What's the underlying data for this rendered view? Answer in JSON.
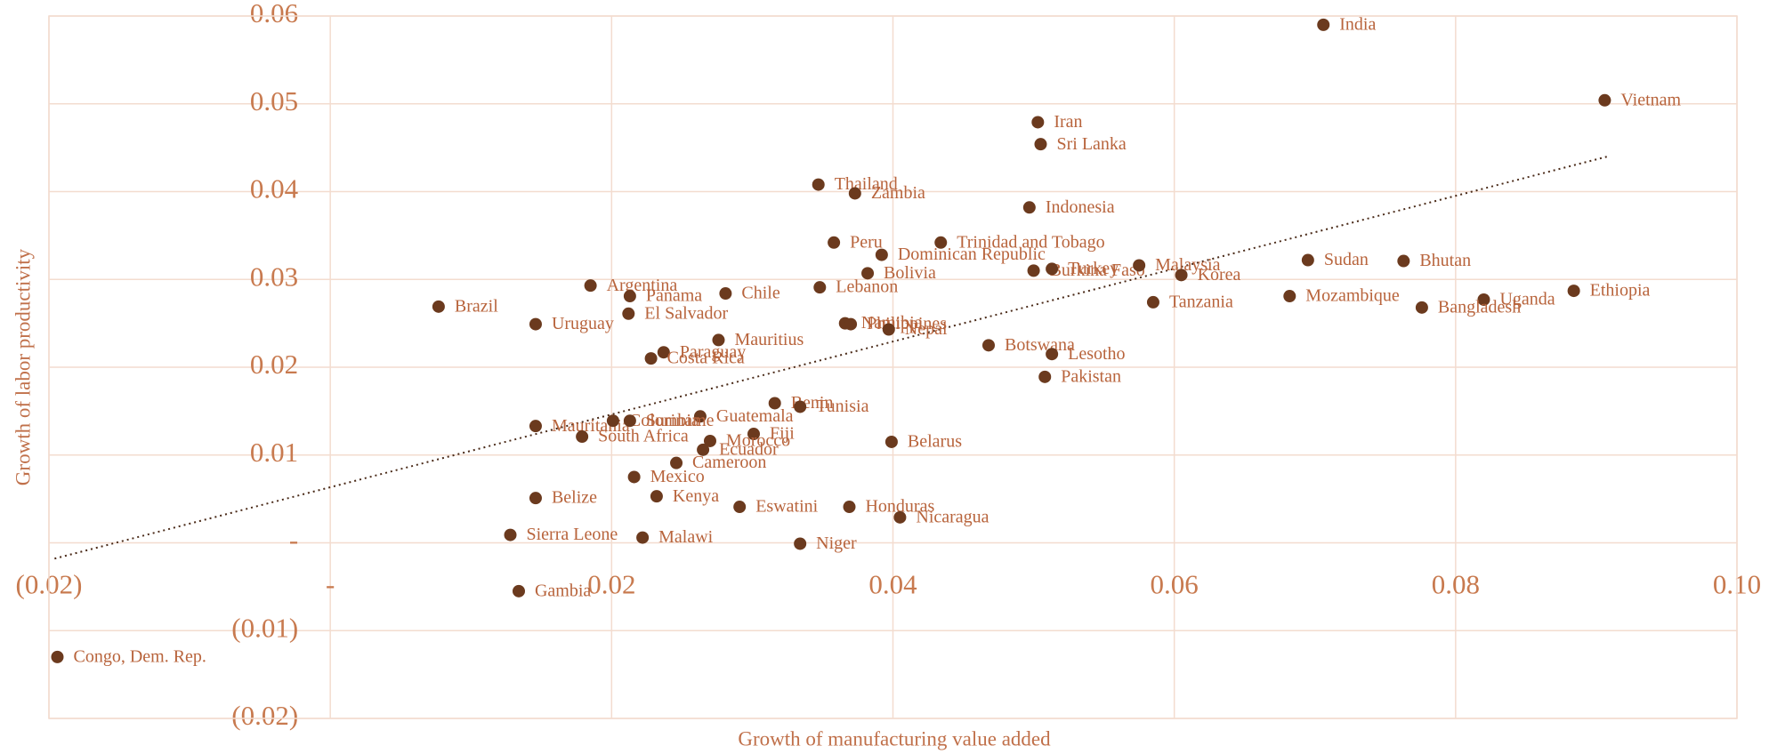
{
  "chart_data": {
    "type": "scatter",
    "x_label": "Growth of manufacturing value added",
    "y_label": "Growth of labor productivity",
    "labels": [
      "India",
      "Vietnam",
      "Iran",
      "Sri Lanka",
      "Thailand",
      "Zambia",
      "Indonesia",
      "Peru",
      "Trinidad and Tobago",
      "Dominican Republic",
      "Bolivia",
      "Burkina Faso",
      "Turkey",
      "Malaysia",
      "Korea",
      "Sudan",
      "Bhutan",
      "Ethiopia",
      "Uganda",
      "Bangladesh",
      "Mozambique",
      "Tanzania",
      "Argentina",
      "Chile",
      "Lebanon",
      "Panama",
      "El Salvador",
      "Brazil",
      "Uruguay",
      "Namibia",
      "Philippines",
      "Nepal",
      "Mauritius",
      "Botswana",
      "Lesotho",
      "Paraguay",
      "Costa Rica",
      "Pakistan",
      "Benin",
      "Tunisia",
      "Guatemala",
      "Mauritania",
      "Colombia",
      "Suriname",
      "Fiji",
      "Morocco",
      "Ecuador",
      "South Africa",
      "Belarus",
      "Cameroon",
      "Mexico",
      "Belize",
      "Kenya",
      "Eswatini",
      "Honduras",
      "Nicaragua",
      "Sierra Leone",
      "Malawi",
      "Niger",
      "Gambia",
      "Congo, Dem. Rep."
    ],
    "x": [
      0.0706,
      0.0906,
      0.0503,
      0.0505,
      0.0347,
      0.0373,
      0.0497,
      0.0358,
      0.0434,
      0.0392,
      0.0382,
      0.05,
      0.0513,
      0.0575,
      0.0605,
      0.0695,
      0.0763,
      0.0884,
      0.082,
      0.0776,
      0.0682,
      0.0585,
      0.0185,
      0.0281,
      0.0348,
      0.0213,
      0.0212,
      0.0077,
      0.0146,
      0.0366,
      0.037,
      0.0397,
      0.0276,
      0.0468,
      0.0513,
      0.0237,
      0.0228,
      0.0508,
      0.0316,
      0.0334,
      0.0263,
      0.0146,
      0.0201,
      0.0213,
      0.0301,
      0.027,
      0.0265,
      0.0179,
      0.0399,
      0.0246,
      0.0216,
      0.0146,
      0.0232,
      0.0291,
      0.0369,
      0.0405,
      0.0128,
      0.0222,
      0.0334,
      0.0134,
      -0.0194
    ],
    "y": [
      0.059,
      0.0504,
      0.0479,
      0.0454,
      0.0408,
      0.0398,
      0.0382,
      0.0342,
      0.0342,
      0.0328,
      0.0307,
      0.031,
      0.0312,
      0.0316,
      0.0305,
      0.0322,
      0.0321,
      0.0287,
      0.0277,
      0.0268,
      0.0281,
      0.0274,
      0.0293,
      0.0284,
      0.0291,
      0.0281,
      0.0261,
      0.0269,
      0.0249,
      0.025,
      0.0249,
      0.0243,
      0.0231,
      0.0225,
      0.0215,
      0.0217,
      0.021,
      0.0189,
      0.0159,
      0.0155,
      0.0144,
      0.0133,
      0.0139,
      0.0139,
      0.0124,
      0.0116,
      0.0106,
      0.0121,
      0.0115,
      0.0091,
      0.0075,
      0.0051,
      0.0053,
      0.0041,
      0.0041,
      0.0029,
      0.0009,
      0.0006,
      -0.0001,
      -0.0055,
      -0.013
    ],
    "color": "#6b3a1e",
    "trendline": {
      "x": [
        -0.0196,
        0.0908
      ],
      "y": [
        -0.0018,
        0.044
      ]
    },
    "xlim": [
      -0.02,
      0.1
    ],
    "ylim": [
      -0.02,
      0.06
    ],
    "xticks": [
      {
        "value": -0.02,
        "label": "(0.02)"
      },
      {
        "value": 0,
        "label": "-"
      },
      0.02,
      0.04,
      0.06,
      0.08,
      {
        "value": 0.1,
        "label": "0.10"
      }
    ],
    "yticks": [
      {
        "value": -0.02,
        "label": "(0.02)"
      },
      {
        "value": -0.01,
        "label": "(0.01)"
      },
      {
        "value": 0,
        "label": "-"
      },
      0.01,
      0.02,
      0.03,
      0.04,
      0.05,
      0.06
    ],
    "grid": true
  }
}
